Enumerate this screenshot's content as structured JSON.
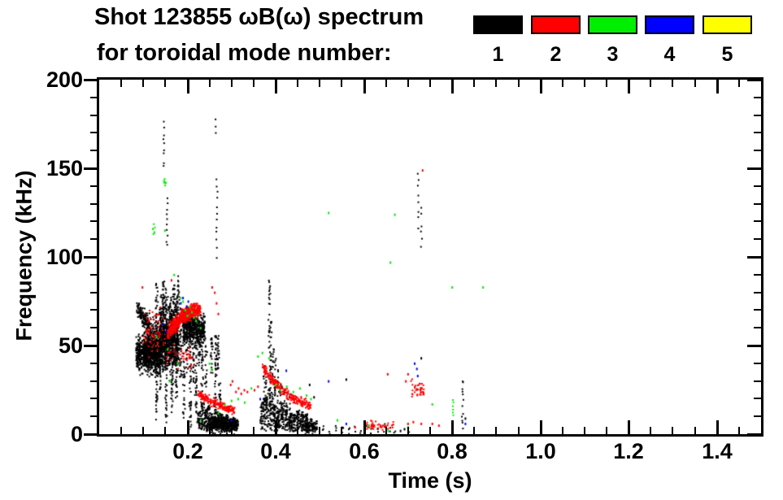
{
  "title": {
    "line1": "Shot 123855 ωB(ω) spectrum",
    "line2": "for toroidal mode number:"
  },
  "legend": {
    "items": [
      {
        "label": "1",
        "color": "#000000"
      },
      {
        "label": "2",
        "color": "#ff0000"
      },
      {
        "label": "3",
        "color": "#00ee00"
      },
      {
        "label": "4",
        "color": "#0000ff"
      },
      {
        "label": "5",
        "color": "#ffff00"
      }
    ]
  },
  "axes": {
    "x": {
      "label": "Time (s)"
    },
    "y": {
      "label": "Frequency (kHz)"
    }
  },
  "chart_data": {
    "type": "scatter",
    "title": "Shot 123855 ωB(ω) spectrum for toroidal mode number: 1 2 3 4 5",
    "xlabel": "Time (s)",
    "ylabel": "Frequency (kHz)",
    "xlim": [
      0,
      1.5
    ],
    "ylim": [
      0,
      200
    ],
    "x_major_ticks": [
      0.2,
      0.4,
      0.6,
      0.8,
      1.0,
      1.2,
      1.4
    ],
    "x_tick_labels": [
      "0.2",
      "0.4",
      "0.6",
      "0.8",
      "1.0",
      "1.2",
      "1.4"
    ],
    "x_minor_step": 0.05,
    "y_major_ticks": [
      0,
      50,
      100,
      150,
      200
    ],
    "y_tick_labels": [
      "0",
      "50",
      "100",
      "150",
      "200"
    ],
    "y_minor_step": 10,
    "grid": false,
    "legend_position": "top-right",
    "modes": [
      {
        "n": 1,
        "color": "#000000"
      },
      {
        "n": 2,
        "color": "#ff0000"
      },
      {
        "n": 3,
        "color": "#00ee00"
      },
      {
        "n": 4,
        "color": "#0000ff"
      },
      {
        "n": 5,
        "color": "#ffff00"
      }
    ],
    "clusters": [
      {
        "mode": 1,
        "type": "gauss",
        "t": [
          0.082,
          0.135
        ],
        "fc": [
          46,
          43
        ],
        "fs": 4.5,
        "n": 520
      },
      {
        "mode": 1,
        "type": "gauss",
        "t": [
          0.1,
          0.178
        ],
        "fc": [
          52,
          50
        ],
        "fs": 6.5,
        "n": 820
      },
      {
        "mode": 1,
        "type": "gauss",
        "t": [
          0.083,
          0.112
        ],
        "fc": [
          72,
          62
        ],
        "fs": 2.5,
        "n": 130
      },
      {
        "mode": 1,
        "type": "gauss",
        "t": [
          0.135,
          0.178
        ],
        "fc": [
          60,
          62
        ],
        "fs": 8,
        "n": 320
      },
      {
        "mode": 1,
        "type": "gauss",
        "t": [
          0.188,
          0.238
        ],
        "fc": [
          61,
          59
        ],
        "fs": 4.5,
        "n": 500
      },
      {
        "mode": 1,
        "type": "streaks",
        "items": [
          [
            0.128,
            8,
            86,
            70
          ],
          [
            0.137,
            25,
            80,
            55
          ],
          [
            0.143,
            35,
            88,
            50
          ],
          [
            0.15,
            5,
            83,
            70
          ],
          [
            0.158,
            30,
            75,
            45
          ],
          [
            0.163,
            12,
            70,
            50
          ],
          [
            0.168,
            35,
            85,
            45
          ],
          [
            0.173,
            20,
            78,
            45
          ],
          [
            0.178,
            40,
            90,
            40
          ],
          [
            0.183,
            30,
            72,
            35
          ],
          [
            0.19,
            8,
            70,
            45
          ],
          [
            0.197,
            35,
            68,
            30
          ],
          [
            0.205,
            3,
            60,
            45
          ],
          [
            0.212,
            30,
            65,
            25
          ],
          [
            0.218,
            5,
            55,
            38
          ],
          [
            0.225,
            35,
            60,
            20
          ],
          [
            0.232,
            3,
            50,
            32
          ],
          [
            0.24,
            25,
            55,
            20
          ],
          [
            0.253,
            35,
            57,
            22
          ],
          [
            0.262,
            5,
            56,
            42
          ],
          [
            0.268,
            37,
            56,
            22
          ],
          [
            0.272,
            3,
            30,
            22
          ]
        ]
      },
      {
        "mode": 1,
        "type": "vdash",
        "items": [
          [
            0.145,
            150,
            178,
            9
          ],
          [
            0.152,
            106,
            135,
            10
          ],
          [
            0.265,
            100,
            146,
            12
          ],
          [
            0.262,
            170,
            179,
            3
          ],
          [
            0.72,
            116,
            150,
            8
          ],
          [
            0.728,
            104,
            130,
            6
          ],
          [
            0.822,
            2,
            33,
            12
          ],
          [
            0.505,
            1,
            4,
            3
          ],
          [
            0.52,
            1,
            3,
            2
          ],
          [
            0.535,
            2,
            5,
            3
          ],
          [
            0.55,
            1,
            6,
            4
          ],
          [
            0.565,
            1,
            4,
            3
          ],
          [
            0.578,
            2,
            5,
            2
          ],
          [
            0.59,
            1,
            3,
            2
          ],
          [
            0.602,
            3,
            6,
            3
          ],
          [
            0.615,
            2,
            4,
            2
          ],
          [
            0.63,
            1,
            5,
            3
          ],
          [
            0.645,
            2,
            6,
            3
          ],
          [
            0.657,
            1,
            4,
            2
          ],
          [
            0.668,
            1,
            3,
            2
          ],
          [
            0.7,
            1,
            3,
            2
          ]
        ]
      },
      {
        "mode": 1,
        "type": "comb",
        "t0": 0.2255,
        "dt": 0.007,
        "count": 13,
        "fb": 2.5,
        "h": [
          15,
          7
        ],
        "n": 34
      },
      {
        "mode": 1,
        "type": "gauss",
        "t": [
          0.24,
          0.31
        ],
        "fc": [
          6,
          5
        ],
        "fs": 2.2,
        "n": 260
      },
      {
        "mode": 1,
        "type": "comb",
        "t0": 0.368,
        "dt": 0.009,
        "count": 12,
        "fb": 2,
        "h": [
          19,
          8
        ],
        "n": 42
      },
      {
        "mode": 1,
        "type": "streaks",
        "items": [
          [
            0.384,
            20,
            88,
            40
          ],
          [
            0.388,
            18,
            66,
            28
          ],
          [
            0.392,
            15,
            50,
            20
          ],
          [
            0.397,
            16,
            44,
            16
          ],
          [
            0.403,
            14,
            38,
            13
          ],
          [
            0.41,
            13,
            33,
            10
          ],
          [
            0.418,
            12,
            28,
            8
          ],
          [
            0.43,
            11,
            25,
            6
          ],
          [
            0.372,
            16,
            40,
            14
          ],
          [
            0.377,
            15,
            34,
            10
          ]
        ]
      },
      {
        "mode": 1,
        "type": "gauss",
        "t": [
          0.465,
          0.492
        ],
        "fc": [
          5,
          4
        ],
        "fs": 2,
        "n": 110
      },
      {
        "mode": 1,
        "type": "points",
        "pts": [
          [
            0.56,
            31
          ],
          [
            0.73,
            43
          ],
          [
            0.83,
            9
          ],
          [
            0.477,
            28
          ],
          [
            0.487,
            21
          ],
          [
            0.683,
            2
          ],
          [
            0.692,
            3
          ]
        ]
      },
      {
        "mode": 2,
        "type": "band",
        "t": [
          0.153,
          0.228
        ],
        "f": [
          57,
          71
        ],
        "w": 2.0,
        "bow": 3,
        "n": 520
      },
      {
        "mode": 2,
        "type": "gauss",
        "t": [
          0.098,
          0.155
        ],
        "fc": [
          58,
          57
        ],
        "fs": 6,
        "n": 65
      },
      {
        "mode": 2,
        "type": "gauss",
        "t": [
          0.15,
          0.215
        ],
        "fc": [
          46,
          44
        ],
        "fs": 3,
        "n": 38
      },
      {
        "mode": 2,
        "type": "band",
        "t": [
          0.222,
          0.305
        ],
        "f": [
          23.5,
          13.5
        ],
        "w": 1.2,
        "bow": -1,
        "n": 190
      },
      {
        "mode": 2,
        "type": "band",
        "t": [
          0.368,
          0.478
        ],
        "f": [
          38,
          16.5
        ],
        "w": 1.4,
        "bow": -4,
        "n": 230
      },
      {
        "mode": 2,
        "type": "band",
        "t": [
          0.595,
          0.665
        ],
        "f": [
          6,
          5
        ],
        "w": 1.4,
        "bow": 0,
        "n": 50
      },
      {
        "mode": 2,
        "type": "gauss",
        "t": [
          0.705,
          0.735
        ],
        "fc": [
          26,
          26
        ],
        "fs": 2.4,
        "n": 42
      },
      {
        "mode": 2,
        "type": "points",
        "pts": [
          [
            0.098,
            83
          ],
          [
            0.164,
            87
          ],
          [
            0.256,
            83
          ],
          [
            0.262,
            80
          ],
          [
            0.266,
            74
          ],
          [
            0.27,
            68
          ],
          [
            0.31,
            24
          ],
          [
            0.316,
            26
          ],
          [
            0.322,
            23
          ],
          [
            0.329,
            25
          ],
          [
            0.336,
            24
          ],
          [
            0.298,
            28
          ],
          [
            0.302,
            30
          ],
          [
            0.58,
            4
          ],
          [
            0.7,
            6
          ],
          [
            0.712,
            7
          ],
          [
            0.73,
            6
          ],
          [
            0.755,
            6
          ],
          [
            0.77,
            5
          ],
          [
            0.7,
            34
          ],
          [
            0.654,
            34
          ],
          [
            0.733,
            149
          ],
          [
            0.695,
            30
          ],
          [
            0.36,
            27
          ],
          [
            0.352,
            25
          ]
        ]
      },
      {
        "mode": 3,
        "type": "points",
        "pts": [
          [
            0.122,
            116
          ],
          [
            0.125,
            114
          ],
          [
            0.149,
            115
          ],
          [
            0.151,
            142
          ],
          [
            0.147,
            143
          ],
          [
            0.155,
            48
          ],
          [
            0.185,
            77
          ],
          [
            0.19,
            75
          ],
          [
            0.195,
            70
          ],
          [
            0.2,
            67
          ],
          [
            0.205,
            72
          ],
          [
            0.21,
            69
          ],
          [
            0.215,
            66
          ],
          [
            0.22,
            64
          ],
          [
            0.23,
            60
          ],
          [
            0.178,
            40
          ],
          [
            0.25,
            40
          ],
          [
            0.255,
            37
          ],
          [
            0.27,
            12
          ],
          [
            0.285,
            17
          ],
          [
            0.3,
            19
          ],
          [
            0.315,
            20
          ],
          [
            0.33,
            18
          ],
          [
            0.345,
            26
          ],
          [
            0.36,
            44
          ],
          [
            0.37,
            46
          ],
          [
            0.385,
            43
          ],
          [
            0.4,
            28
          ],
          [
            0.41,
            25
          ],
          [
            0.425,
            27
          ],
          [
            0.44,
            24
          ],
          [
            0.455,
            26
          ],
          [
            0.47,
            22
          ],
          [
            0.48,
            20
          ],
          [
            0.52,
            125
          ],
          [
            0.54,
            8
          ],
          [
            0.61,
            5
          ],
          [
            0.655,
            2
          ],
          [
            0.67,
            124
          ],
          [
            0.66,
            97
          ],
          [
            0.7,
            4
          ],
          [
            0.755,
            17
          ],
          [
            0.8,
            83
          ],
          [
            0.87,
            83
          ],
          [
            0.13,
            55
          ],
          [
            0.16,
            30
          ],
          [
            0.17,
            90
          ],
          [
            0.23,
            8
          ]
        ]
      },
      {
        "mode": 3,
        "type": "vdash",
        "items": [
          [
            0.8,
            10,
            20,
            6
          ],
          [
            0.147,
            140,
            146,
            3
          ],
          [
            0.122,
            113,
            118,
            3
          ]
        ]
      },
      {
        "mode": 4,
        "type": "points",
        "pts": [
          [
            0.185,
            74
          ],
          [
            0.19,
            77
          ],
          [
            0.198,
            72
          ],
          [
            0.202,
            75
          ],
          [
            0.145,
            62
          ],
          [
            0.152,
            58
          ],
          [
            0.3,
            8
          ],
          [
            0.52,
            30
          ],
          [
            0.715,
            40
          ],
          [
            0.72,
            37
          ],
          [
            0.722,
            33
          ],
          [
            0.83,
            6
          ],
          [
            0.424,
            36
          ],
          [
            0.365,
            20
          ],
          [
            0.56,
            6
          ]
        ]
      }
    ]
  }
}
